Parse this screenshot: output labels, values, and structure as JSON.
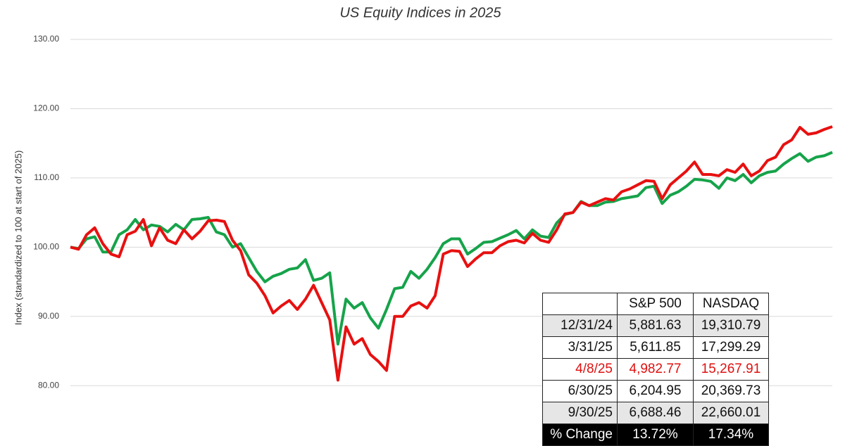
{
  "chart_data": {
    "type": "line",
    "title": "US Equity Indices in 2025",
    "y_label": "Index (standardized to 100 at start of 2025)",
    "ylim": [
      72,
      130
    ],
    "yticks": [
      {
        "value": 80,
        "label": "80.00"
      },
      {
        "value": 90,
        "label": "90.00"
      },
      {
        "value": 100,
        "label": "100.00"
      },
      {
        "value": 110,
        "label": "110.00"
      },
      {
        "value": 120,
        "label": "120.00"
      },
      {
        "value": 130,
        "label": "130.00"
      }
    ],
    "grid": true,
    "series": [
      {
        "color": "#16a34a",
        "values": [
          100.0,
          99.8,
          101.2,
          101.5,
          99.3,
          99.3,
          101.8,
          102.5,
          104.0,
          102.5,
          103.2,
          103.0,
          102.2,
          103.3,
          102.5,
          104.0,
          104.1,
          104.3,
          102.2,
          101.8,
          100.0,
          100.5,
          98.5,
          96.5,
          95.0,
          95.8,
          96.2,
          96.8,
          97.0,
          98.2,
          95.2,
          95.5,
          96.3,
          86.0,
          92.5,
          91.2,
          92.0,
          89.8,
          88.3,
          91.0,
          94.0,
          94.2,
          96.5,
          95.5,
          96.8,
          98.5,
          100.5,
          101.2,
          101.2,
          99.0,
          99.8,
          100.7,
          100.8,
          101.3,
          101.8,
          102.4,
          101.2,
          102.5,
          101.6,
          101.4,
          103.5,
          104.7,
          105.0,
          106.6,
          106.0,
          106.0,
          106.5,
          106.6,
          107.0,
          107.2,
          107.4,
          108.6,
          108.8,
          106.3,
          107.5,
          108.0,
          108.8,
          109.8,
          109.7,
          109.5,
          108.5,
          110.0,
          109.6,
          110.5,
          109.3,
          110.3,
          110.8,
          111.0,
          112.0,
          112.8,
          113.5,
          112.4,
          113.0,
          113.2,
          113.7
        ]
      },
      {
        "color": "#e81010",
        "values": [
          100.0,
          99.7,
          101.8,
          102.8,
          100.5,
          99.0,
          98.6,
          101.8,
          102.3,
          104.0,
          100.2,
          102.8,
          101.0,
          100.5,
          102.5,
          101.2,
          102.3,
          103.8,
          103.9,
          103.7,
          101.0,
          99.5,
          96.0,
          94.8,
          93.0,
          90.5,
          91.5,
          92.3,
          91.0,
          92.5,
          94.5,
          92.0,
          89.5,
          80.8,
          88.5,
          86.0,
          86.8,
          84.5,
          83.5,
          82.2,
          90.0,
          90.0,
          91.5,
          92.0,
          91.2,
          93.0,
          99.0,
          99.5,
          99.4,
          97.2,
          98.3,
          99.2,
          99.2,
          100.2,
          100.8,
          101.0,
          100.6,
          102.0,
          101.0,
          100.7,
          102.5,
          104.8,
          105.0,
          106.5,
          106.0,
          106.5,
          107.0,
          106.8,
          108.0,
          108.4,
          109.0,
          109.6,
          109.5,
          107.0,
          109.0,
          110.0,
          111.0,
          112.3,
          110.5,
          110.5,
          110.3,
          111.2,
          110.8,
          112.0,
          110.3,
          111.0,
          112.5,
          113.0,
          114.8,
          115.5,
          117.3,
          116.3,
          116.5,
          117.0,
          117.4
        ]
      }
    ]
  },
  "table": {
    "columns": [
      "S&P 500",
      "NASDAQ"
    ],
    "rows": [
      {
        "label": "12/31/24",
        "cells": [
          "5,881.63",
          "19,310.79"
        ]
      },
      {
        "label": "3/31/25",
        "cells": [
          "5,611.85",
          "17,299.29"
        ]
      },
      {
        "label": "4/8/25",
        "cells": [
          "4,982.77",
          "15,267.91"
        ]
      },
      {
        "label": "6/30/25",
        "cells": [
          "6,204.95",
          "20,369.73"
        ]
      },
      {
        "label": "9/30/25",
        "cells": [
          "6,688.46",
          "22,660.01"
        ]
      },
      {
        "label": "% Change",
        "cells": [
          "13.72%",
          "17.34%"
        ]
      }
    ]
  }
}
